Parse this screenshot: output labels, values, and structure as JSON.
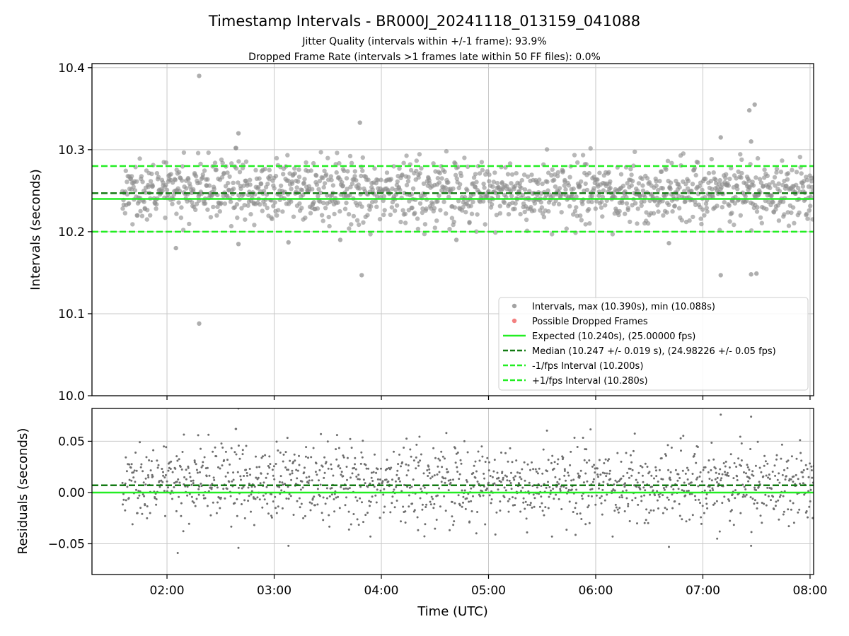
{
  "chart_data": [
    {
      "type": "scatter",
      "title": "Timestamp Intervals - BR000J_20241118_013159_041088",
      "subtitle_lines": [
        "Jitter Quality (intervals within +/-1 frame): 93.9%",
        "Dropped Frame Rate (intervals >1 frames late within 50 FF files): 0.0%"
      ],
      "xlabel": "",
      "ylabel": "Intervals (seconds)",
      "xlim": [
        "01:18",
        "08:02"
      ],
      "ylim": [
        10.0,
        10.405
      ],
      "y_ticks": [
        "10.0",
        "10.1",
        "10.2",
        "10.3",
        "10.4"
      ],
      "grid": true,
      "legend_position": "lower-right",
      "reference_lines": [
        {
          "name": "Expected (10.240s), (25.00000 fps)",
          "y": 10.24,
          "style": "solid",
          "color": "#22ee22"
        },
        {
          "name": "Median (10.247 +/- 0.019 s), (24.98226 +/- 0.05 fps)",
          "y": 10.247,
          "style": "dashed",
          "color": "#137a13"
        },
        {
          "name": "-1/fps Interval (10.200s)",
          "y": 10.2,
          "style": "dashed",
          "color": "#22ee22"
        },
        {
          "name": "+1/fps Interval (10.280s)",
          "y": 10.28,
          "style": "dashed",
          "color": "#22ee22"
        }
      ],
      "series": [
        {
          "name": "Intervals, max (10.390s), min (10.088s)",
          "marker": "circle",
          "color": "#8c8c8c",
          "outliers": [
            {
              "x": "02:18",
              "y": 10.39
            },
            {
              "x": "02:18",
              "y": 10.088
            },
            {
              "x": "02:40",
              "y": 10.32
            },
            {
              "x": "03:48",
              "y": 10.333
            },
            {
              "x": "03:49",
              "y": 10.147
            },
            {
              "x": "02:05",
              "y": 10.18
            },
            {
              "x": "02:40",
              "y": 10.185
            },
            {
              "x": "03:08",
              "y": 10.187
            },
            {
              "x": "07:26",
              "y": 10.348
            },
            {
              "x": "07:29",
              "y": 10.355
            },
            {
              "x": "07:27",
              "y": 10.148
            },
            {
              "x": "07:30",
              "y": 10.149
            },
            {
              "x": "07:10",
              "y": 10.147
            },
            {
              "x": "06:41",
              "y": 10.186
            },
            {
              "x": "07:10",
              "y": 10.315
            },
            {
              "x": "07:27",
              "y": 10.31
            },
            {
              "x": "04:42",
              "y": 10.19
            },
            {
              "x": "03:37",
              "y": 10.19
            }
          ]
        },
        {
          "name": "Possible Dropped Frames",
          "marker": "circle",
          "color": "#f06060",
          "points": []
        }
      ]
    },
    {
      "type": "scatter",
      "title": "",
      "xlabel": "Time (UTC)",
      "ylabel": "Residuals (seconds)",
      "xlim": [
        "01:18",
        "08:02"
      ],
      "ylim": [
        -0.08,
        0.082
      ],
      "x_ticks": [
        "02:00",
        "03:00",
        "04:00",
        "05:00",
        "06:00",
        "07:00",
        "08:00"
      ],
      "y_ticks": [
        "0.05",
        "0.00",
        "−0.05"
      ],
      "grid": true,
      "reference_lines": [
        {
          "y": 0.0,
          "style": "solid",
          "color": "#22ee22"
        },
        {
          "y": 0.007,
          "style": "dashed",
          "color": "#137a13"
        }
      ],
      "series": [
        {
          "marker": "dot",
          "color": "#6e6e6e",
          "outliers": [
            {
              "x": "02:06",
              "y": -0.059
            },
            {
              "x": "02:40",
              "y": -0.054
            },
            {
              "x": "02:40",
              "y": 0.082
            },
            {
              "x": "03:08",
              "y": -0.052
            },
            {
              "x": "06:41",
              "y": -0.053
            },
            {
              "x": "07:10",
              "y": 0.076
            },
            {
              "x": "07:27",
              "y": 0.074
            },
            {
              "x": "07:27",
              "y": -0.052
            },
            {
              "x": "07:08",
              "y": -0.045
            }
          ]
        }
      ]
    }
  ]
}
